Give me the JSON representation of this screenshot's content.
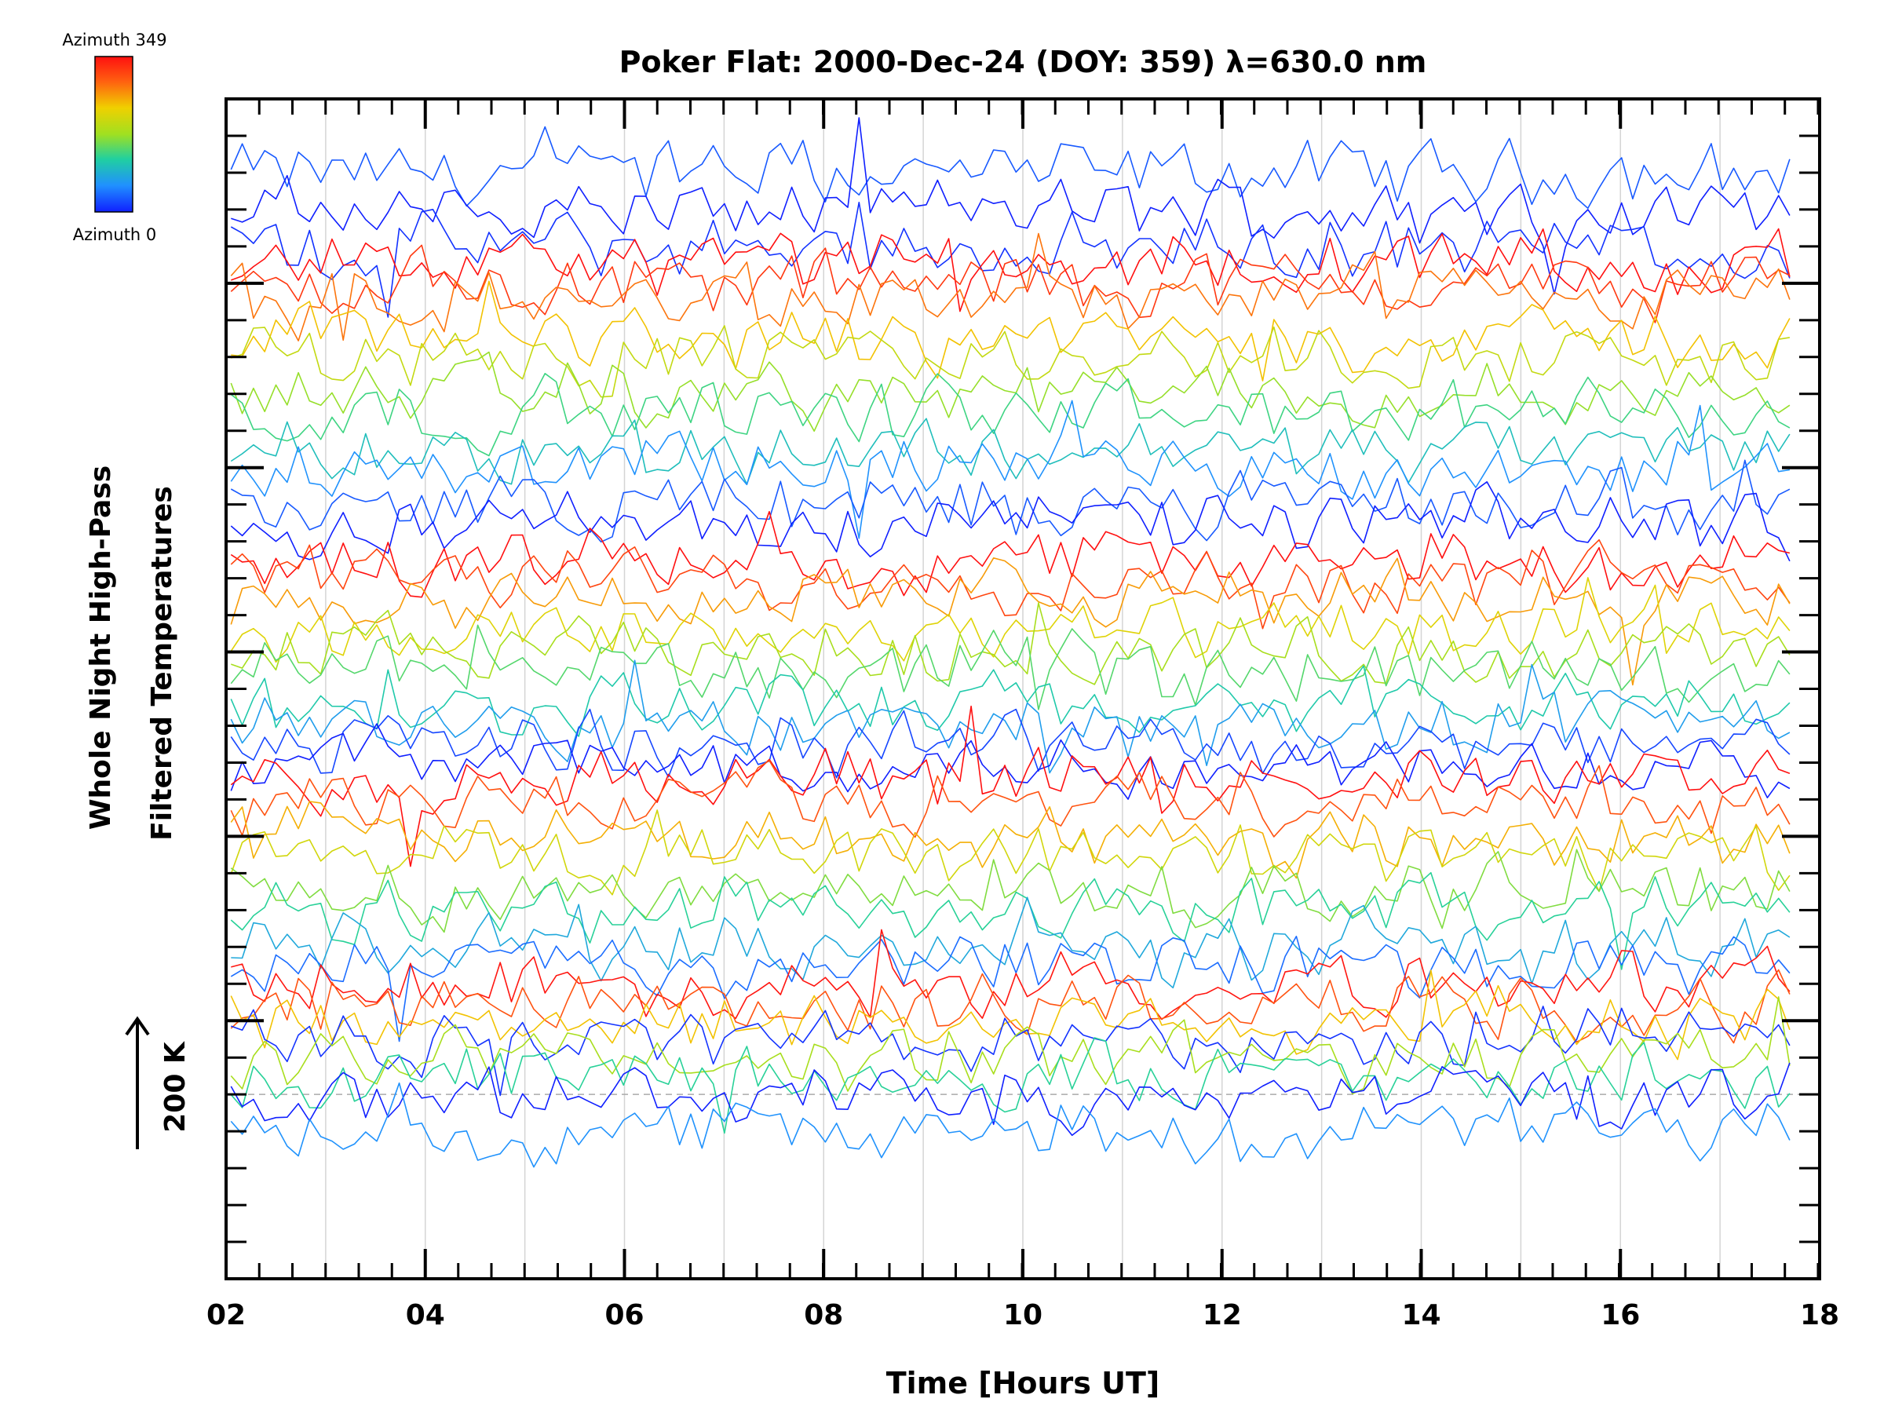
{
  "chart_data": {
    "type": "line",
    "title": "Poker Flat: 2000-Dec-24 (DOY: 359) λ=630.0 nm",
    "xlabel": "Time [Hours UT]",
    "ylabel_line1": "Whole Night High-Pass",
    "ylabel_line2": "Filtered Temperatures",
    "scale_label": "200 K",
    "scale_k": 200,
    "xlim": [
      2,
      18
    ],
    "x_ticks": [
      "02",
      "04",
      "06",
      "08",
      "10",
      "12",
      "14",
      "16",
      "18"
    ],
    "x_minor_step": 0.333,
    "ylim": [
      -34,
      30
    ],
    "y_major_ticks": [
      -20,
      -10,
      0,
      10,
      20
    ],
    "y_minor_step": 2,
    "baseline_level": -24,
    "gridlines": "vertical, every hour",
    "colorbar": {
      "top_label": "Azimuth 349",
      "bottom_label": "Azimuth 0",
      "colors": [
        "#1020ff",
        "#2090ff",
        "#20d0a0",
        "#a0e020",
        "#f0d000",
        "#ff6010",
        "#ff1010"
      ]
    },
    "t_start": 2.05,
    "t_end": 17.7,
    "n_points": 140,
    "series_note_visible": "one trace per azimuth look direction, offset vertically",
    "series": [
      {
        "level": 26,
        "az": 30
      },
      {
        "level": 24,
        "az": 0
      },
      {
        "level": 22,
        "az": 10
      },
      {
        "level": 21,
        "az": 349
      },
      {
        "level": 20,
        "az": 320
      },
      {
        "level": 19,
        "az": 280
      },
      {
        "level": 17,
        "az": 240
      },
      {
        "level": 16,
        "az": 200
      },
      {
        "level": 14,
        "az": 170
      },
      {
        "level": 13,
        "az": 130
      },
      {
        "level": 11,
        "az": 100
      },
      {
        "level": 10,
        "az": 60
      },
      {
        "level": 8,
        "az": 30
      },
      {
        "level": 7,
        "az": 0
      },
      {
        "level": 5,
        "az": 349
      },
      {
        "level": 4,
        "az": 310
      },
      {
        "level": 3,
        "az": 260
      },
      {
        "level": 1,
        "az": 220
      },
      {
        "level": 0,
        "az": 180
      },
      {
        "level": -1,
        "az": 140
      },
      {
        "level": -3,
        "az": 110
      },
      {
        "level": -4,
        "az": 70
      },
      {
        "level": -5,
        "az": 20
      },
      {
        "level": -6,
        "az": 0
      },
      {
        "level": -7,
        "az": 349
      },
      {
        "level": -8,
        "az": 300
      },
      {
        "level": -10,
        "az": 250
      },
      {
        "level": -11,
        "az": 210
      },
      {
        "level": -13,
        "az": 160
      },
      {
        "level": -14,
        "az": 120
      },
      {
        "level": -16,
        "az": 80
      },
      {
        "level": -17,
        "az": 40
      },
      {
        "level": -18,
        "az": 345
      },
      {
        "level": -19,
        "az": 300
      },
      {
        "level": -20,
        "az": 240
      },
      {
        "level": -21,
        "az": 10
      },
      {
        "level": -22,
        "az": 180
      },
      {
        "level": -23,
        "az": 120
      },
      {
        "level": -24,
        "az": 0
      },
      {
        "level": -26,
        "az": 60
      }
    ]
  }
}
